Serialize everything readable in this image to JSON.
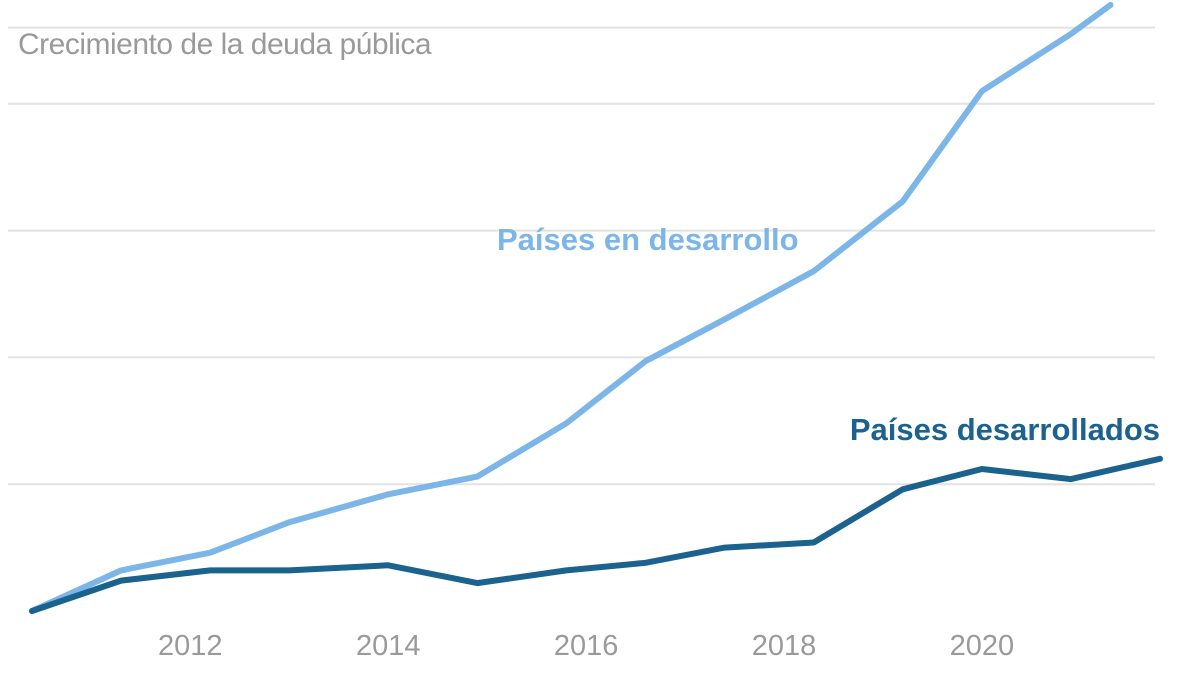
{
  "chart_data": {
    "type": "line",
    "title": "Crecimiento de la deuda pública",
    "xlabel": "",
    "ylabel": "",
    "x": [
      2010.4,
      2011.3,
      2012.2,
      2013.0,
      2014.0,
      2014.9,
      2015.8,
      2016.6,
      2017.4,
      2018.3,
      2019.2,
      2020.0,
      2020.9,
      2021.3
    ],
    "xticks": [
      "2012",
      "2014",
      "2016",
      "2018",
      "2020"
    ],
    "xlim": [
      2010.4,
      2021.8
    ],
    "ylim": [
      0,
      4.7
    ],
    "grid": true,
    "series": [
      {
        "name": "Países en desarrollo",
        "color": "#7cb6e8",
        "x": [
          2010.4,
          2011.3,
          2012.2,
          2013.0,
          2014.0,
          2014.9,
          2015.8,
          2016.6,
          2017.4,
          2018.3,
          2019.2,
          2020.0,
          2020.9,
          2021.3
        ],
        "values": [
          0.0,
          0.32,
          0.46,
          0.7,
          0.92,
          1.06,
          1.48,
          1.97,
          2.3,
          2.68,
          3.23,
          4.1,
          4.55,
          4.78
        ]
      },
      {
        "name": "Países desarrollados",
        "color": "#1b628f",
        "x": [
          2010.4,
          2011.3,
          2012.2,
          2013.0,
          2014.0,
          2014.9,
          2015.8,
          2016.6,
          2017.4,
          2018.3,
          2019.2,
          2020.0,
          2020.9,
          2021.8
        ],
        "values": [
          0.0,
          0.24,
          0.32,
          0.32,
          0.36,
          0.22,
          0.32,
          0.38,
          0.5,
          0.54,
          0.96,
          1.12,
          1.04,
          1.2
        ]
      }
    ]
  }
}
